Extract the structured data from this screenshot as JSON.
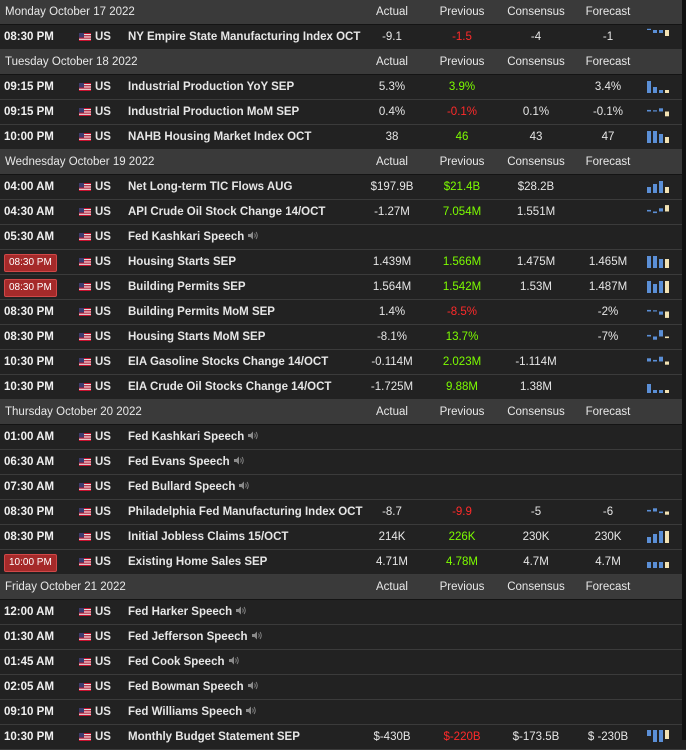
{
  "headers": {
    "actual": "Actual",
    "previous": "Previous",
    "consensus": "Consensus",
    "forecast": "Forecast"
  },
  "days": [
    {
      "date": "Monday October 17 2022",
      "events": [
        {
          "time": "08:30 PM",
          "country": "US",
          "event": "NY Empire State Manufacturing Index OCT",
          "actual": "-9.1",
          "previous": "-1.5",
          "prev_color": "red",
          "consensus": "-4",
          "forecast": "-1",
          "chart": [
            0,
            -1,
            -1,
            -2
          ],
          "chart_icon": "bar-chart-icon"
        }
      ]
    },
    {
      "date": "Tuesday October 18 2022",
      "events": [
        {
          "time": "09:15 PM",
          "country": "US",
          "event": "Industrial Production YoY SEP",
          "actual": "5.3%",
          "previous": "3.9%",
          "prev_color": "green",
          "consensus": "",
          "forecast": "3.4%",
          "chart": [
            4,
            2,
            1,
            1
          ],
          "chart_icon": "bar-chart-icon"
        },
        {
          "time": "09:15 PM",
          "country": "US",
          "event": "Industrial Production MoM SEP",
          "actual": "0.4%",
          "previous": "-0.1%",
          "prev_color": "red",
          "consensus": "0.1%",
          "forecast": "-0.1%",
          "chart": [
            1,
            0,
            2,
            -3
          ],
          "chart_icon": "bar-chart-icon"
        },
        {
          "time": "10:00 PM",
          "country": "US",
          "event": "NAHB Housing Market Index OCT",
          "actual": "38",
          "previous": "46",
          "prev_color": "green",
          "consensus": "43",
          "forecast": "47",
          "chart": [
            4,
            4,
            3,
            2
          ],
          "chart_icon": "bar-chart-icon"
        }
      ]
    },
    {
      "date": "Wednesday October 19 2022",
      "events": [
        {
          "time": "04:00 AM",
          "country": "US",
          "event": "Net Long-term TIC Flows AUG",
          "actual": "$197.9B",
          "previous": "$21.4B",
          "prev_color": "green",
          "consensus": "$28.2B",
          "forecast": "",
          "chart": [
            2,
            3,
            4,
            2
          ],
          "chart_icon": "bar-chart-icon"
        },
        {
          "time": "04:30 AM",
          "country": "US",
          "event": "API Crude Oil Stock Change 14/OCT",
          "actual": "-1.27M",
          "previous": "7.054M",
          "prev_color": "green",
          "consensus": "1.551M",
          "forecast": "",
          "chart": [
            1,
            -1,
            2,
            4
          ],
          "chart_icon": "bar-chart-icon"
        },
        {
          "time": "05:30 AM",
          "country": "US",
          "event": "Fed Kashkari Speech",
          "speech": true
        },
        {
          "time": "08:30 PM",
          "highlight": true,
          "country": "US",
          "event": "Housing Starts SEP",
          "actual": "1.439M",
          "previous": "1.566M",
          "prev_color": "green",
          "consensus": "1.475M",
          "forecast": "1.465M",
          "chart": [
            4,
            4,
            3,
            3
          ],
          "chart_icon": "bar-chart-icon"
        },
        {
          "time": "08:30 PM",
          "highlight": true,
          "country": "US",
          "event": "Building Permits SEP",
          "actual": "1.564M",
          "previous": "1.542M",
          "prev_color": "green",
          "consensus": "1.53M",
          "forecast": "1.487M",
          "chart": [
            4,
            3,
            4,
            4
          ],
          "chart_icon": "bar-chart-icon"
        },
        {
          "time": "08:30 PM",
          "country": "US",
          "event": "Building Permits MoM SEP",
          "actual": "1.4%",
          "previous": "-8.5%",
          "prev_color": "red",
          "consensus": "",
          "forecast": "-2%",
          "chart": [
            1,
            0,
            -2,
            -4
          ],
          "chart_icon": "bar-chart-icon"
        },
        {
          "time": "08:30 PM",
          "country": "US",
          "event": "Housing Starts MoM SEP",
          "actual": "-8.1%",
          "previous": "13.7%",
          "prev_color": "green",
          "consensus": "",
          "forecast": "-7%",
          "chart": [
            1,
            -2,
            4,
            -1
          ],
          "chart_icon": "bar-chart-icon"
        },
        {
          "time": "10:30 PM",
          "country": "US",
          "event": "EIA Gasoline Stocks Change 14/OCT",
          "actual": "-0.114M",
          "previous": "2.023M",
          "prev_color": "green",
          "consensus": "-1.114M",
          "forecast": "",
          "chart": [
            2,
            1,
            3,
            -2
          ],
          "chart_icon": "bar-chart-icon"
        },
        {
          "time": "10:30 PM",
          "country": "US",
          "event": "EIA Crude Oil Stocks Change 14/OCT",
          "actual": "-1.725M",
          "previous": "9.88M",
          "prev_color": "green",
          "consensus": "1.38M",
          "forecast": "",
          "chart": [
            3,
            1,
            1,
            1
          ],
          "chart_icon": "bar-chart-icon"
        }
      ]
    },
    {
      "date": "Thursday October 20 2022",
      "events": [
        {
          "time": "01:00 AM",
          "country": "US",
          "event": "Fed Kashkari Speech",
          "speech": true
        },
        {
          "time": "06:30 AM",
          "country": "US",
          "event": "Fed Evans Speech",
          "speech": true
        },
        {
          "time": "07:30 AM",
          "country": "US",
          "event": "Fed Bullard Speech",
          "speech": true
        },
        {
          "time": "08:30 PM",
          "country": "US",
          "event": "Philadelphia Fed Manufacturing Index OCT",
          "actual": "-8.7",
          "previous": "-9.9",
          "prev_color": "red",
          "consensus": "-5",
          "forecast": "-6",
          "chart": [
            1,
            2,
            -1,
            -2
          ],
          "chart_icon": "bar-chart-icon"
        },
        {
          "time": "08:30 PM",
          "country": "US",
          "event": "Initial Jobless Claims 15/OCT",
          "actual": "214K",
          "previous": "226K",
          "prev_color": "green",
          "consensus": "230K",
          "forecast": "230K",
          "chart": [
            2,
            3,
            4,
            4
          ],
          "chart_icon": "bar-chart-icon"
        },
        {
          "time": "10:00 PM",
          "highlight": true,
          "country": "US",
          "event": "Existing Home Sales SEP",
          "actual": "4.71M",
          "previous": "4.78M",
          "prev_color": "green",
          "consensus": "4.7M",
          "forecast": "4.7M",
          "chart": [
            2,
            2,
            2,
            2
          ],
          "chart_icon": "bar-chart-icon"
        }
      ]
    },
    {
      "date": "Friday October 21 2022",
      "events": [
        {
          "time": "12:00 AM",
          "country": "US",
          "event": "Fed Harker Speech",
          "speech": true
        },
        {
          "time": "01:30 AM",
          "country": "US",
          "event": "Fed Jefferson Speech",
          "speech": true
        },
        {
          "time": "01:45 AM",
          "country": "US",
          "event": "Fed Cook Speech",
          "speech": true
        },
        {
          "time": "02:05 AM",
          "country": "US",
          "event": "Fed Bowman Speech",
          "speech": true
        },
        {
          "time": "09:10 PM",
          "country": "US",
          "event": "Fed Williams Speech",
          "speech": true
        },
        {
          "time": "10:30 PM",
          "country": "US",
          "event": "Monthly Budget Statement SEP",
          "actual": "$-430B",
          "previous": "$-220B",
          "prev_color": "red",
          "consensus": "$-173.5B",
          "forecast": "$ -230B",
          "chart": [
            -2,
            -4,
            -4,
            -3
          ],
          "chart_icon": "bar-chart-icon"
        }
      ]
    }
  ],
  "colors": {
    "green": "#7cfc00",
    "red": "#ff2a2a",
    "chart_blue": "#5b8fd6",
    "chart_cream": "#f2e2b3",
    "highlight": "#a52a2a"
  }
}
